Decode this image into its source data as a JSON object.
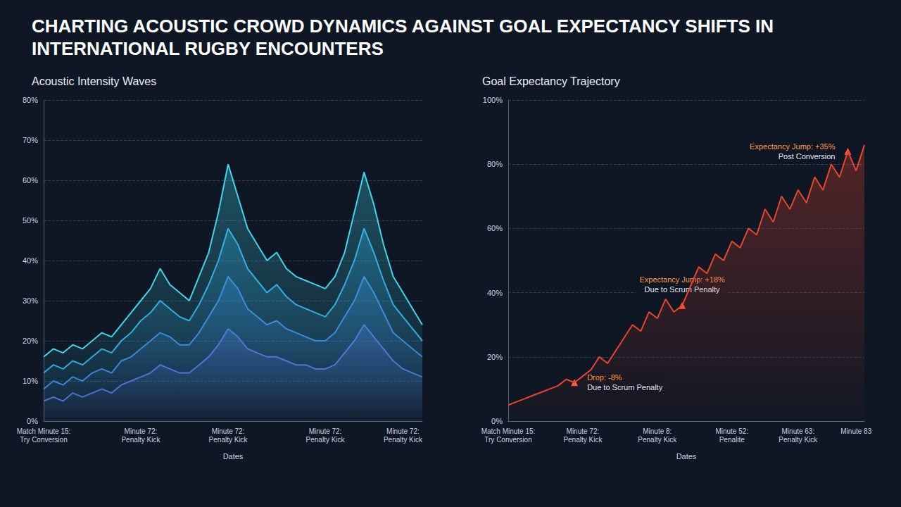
{
  "title": "CHARTING ACOUSTIC CROWD DYNAMICS AGAINST GOAL EXPECTANCY SHIFTS IN INTERNATIONAL RUGBY ENCOUNTERS",
  "chart_data": [
    {
      "type": "area",
      "title": "Acoustic Intensity Waves",
      "xlabel": "Dates",
      "categories": [
        "Match Minute 15: Try Conversion",
        null,
        null,
        null,
        null,
        null,
        null,
        null,
        null,
        null,
        "Minute 72: Penalty Kick",
        null,
        null,
        null,
        null,
        null,
        null,
        null,
        null,
        "Minute 72: Penalty Kick",
        null,
        null,
        null,
        null,
        null,
        null,
        null,
        null,
        null,
        "Minute 72: Penalty Kick",
        null,
        null,
        null,
        null,
        null,
        null,
        null,
        "Minute 72: Penalty Kick",
        null,
        null
      ],
      "series": [
        {
          "color": "#3fd6ec",
          "values": [
            16,
            18,
            17,
            19,
            18,
            20,
            22,
            21,
            24,
            27,
            30,
            33,
            38,
            34,
            32,
            30,
            36,
            42,
            52,
            64,
            56,
            48,
            44,
            40,
            42,
            38,
            36,
            35,
            34,
            33,
            36,
            42,
            52,
            62,
            54,
            44,
            36,
            32,
            28,
            24
          ]
        },
        {
          "color": "#2ea6e2",
          "values": [
            12,
            14,
            13,
            15,
            14,
            16,
            18,
            17,
            20,
            22,
            25,
            27,
            30,
            28,
            26,
            25,
            29,
            34,
            40,
            48,
            44,
            38,
            35,
            32,
            34,
            31,
            29,
            28,
            27,
            26,
            29,
            34,
            40,
            48,
            42,
            35,
            29,
            26,
            23,
            20
          ]
        },
        {
          "color": "#3a7bd8",
          "values": [
            8,
            10,
            9,
            11,
            10,
            12,
            13,
            12,
            15,
            16,
            18,
            20,
            22,
            21,
            19,
            19,
            22,
            26,
            30,
            36,
            33,
            28,
            26,
            24,
            25,
            23,
            22,
            21,
            20,
            20,
            22,
            26,
            30,
            36,
            32,
            27,
            22,
            20,
            18,
            16
          ]
        },
        {
          "color": "#5a62d0",
          "values": [
            5,
            6,
            5,
            7,
            6,
            7,
            8,
            7,
            9,
            10,
            11,
            12,
            14,
            13,
            12,
            12,
            14,
            16,
            19,
            23,
            21,
            18,
            17,
            16,
            16,
            15,
            14,
            14,
            13,
            13,
            14,
            17,
            20,
            24,
            21,
            18,
            15,
            13,
            12,
            11
          ]
        }
      ],
      "ylim": [
        0,
        80
      ],
      "yticks": [
        {
          "value": 0,
          "label": "0%"
        },
        {
          "value": 10,
          "label": "10%"
        },
        {
          "value": 20,
          "label": "20%"
        },
        {
          "value": 30,
          "label": "30%"
        },
        {
          "value": 40,
          "label": "40%"
        },
        {
          "value": 50,
          "label": "50%"
        },
        {
          "value": 60,
          "label": "60%"
        },
        {
          "value": 70,
          "label": "70%"
        },
        {
          "value": 80,
          "label": "80%"
        }
      ],
      "grid": true
    },
    {
      "type": "area",
      "title": "Goal Expectancy Trajectory",
      "xlabel": "Dates",
      "categories": [
        "Match Minute 15: Try Conversion",
        null,
        null,
        null,
        null,
        null,
        null,
        null,
        null,
        "Minute 72: Penalty Kick",
        null,
        null,
        null,
        null,
        null,
        null,
        null,
        null,
        "Minute 8: Penalty Kick",
        null,
        null,
        null,
        null,
        null,
        null,
        null,
        null,
        "Minute 52: Penalite",
        null,
        null,
        null,
        null,
        null,
        null,
        null,
        "Minute 63: Penalty Kick",
        null,
        null,
        null,
        null,
        null,
        null,
        "Minute 83",
        null
      ],
      "series": [
        {
          "color": "#e8452c",
          "values": [
            5,
            6,
            7,
            8,
            9,
            10,
            11,
            13,
            12,
            14,
            16,
            20,
            18,
            22,
            26,
            30,
            28,
            34,
            32,
            38,
            34,
            36,
            42,
            48,
            46,
            52,
            50,
            56,
            54,
            60,
            58,
            66,
            62,
            70,
            66,
            72,
            68,
            76,
            72,
            80,
            76,
            84,
            78,
            86
          ]
        }
      ],
      "annotations": [
        {
          "index": 8,
          "lines": [
            "Drop: -8%",
            "Due to Scrum Penalty"
          ]
        },
        {
          "index": 21,
          "lines": [
            "Expectancy Jump: +18%",
            "Due to Scrum Penalty"
          ]
        },
        {
          "index": 41,
          "lines": [
            "Expectancy Jump: +35%",
            "Post Conversion"
          ]
        }
      ],
      "ylim": [
        0,
        100
      ],
      "yticks": [
        {
          "value": 0,
          "label": "0%"
        },
        {
          "value": 20,
          "label": "20%"
        },
        {
          "value": 40,
          "label": "40%"
        },
        {
          "value": 60,
          "label": "60%"
        },
        {
          "value": 80,
          "label": "80%"
        },
        {
          "value": 100,
          "label": "100%"
        }
      ],
      "grid": true
    }
  ]
}
